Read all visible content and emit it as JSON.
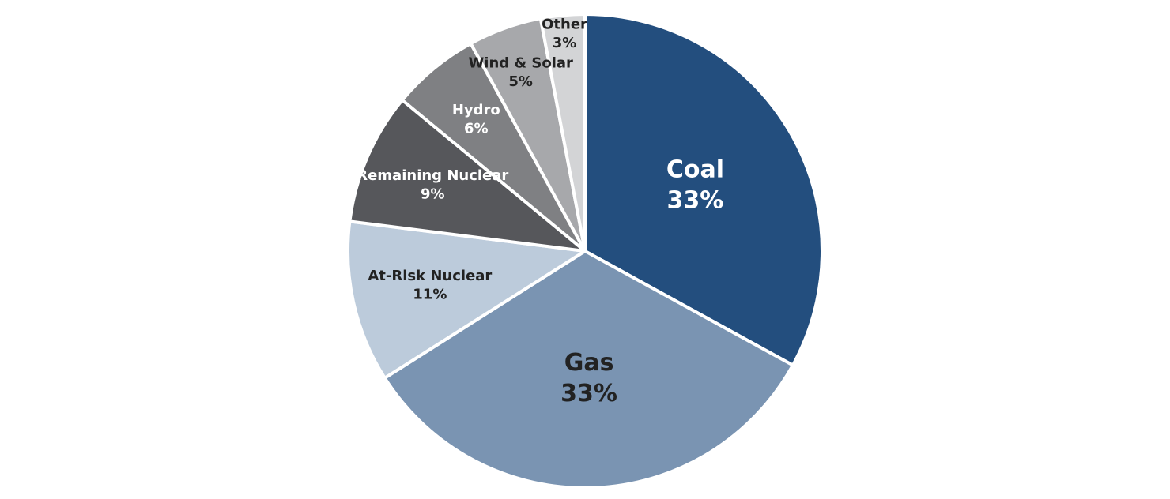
{
  "chart_data": {
    "type": "pie",
    "categories": [
      "Coal",
      "Gas",
      "At-Risk Nuclear",
      "Remaining Nuclear",
      "Hydro",
      "Wind & Solar",
      "Other"
    ],
    "values": [
      33,
      33,
      11,
      9,
      6,
      5,
      3
    ],
    "value_labels": [
      "33%",
      "33%",
      "11%",
      "9%",
      "6%",
      "5%",
      "3%"
    ],
    "colors": [
      "#234e7e",
      "#7a94b2",
      "#bccbdb",
      "#56575b",
      "#7f8083",
      "#a7a8ab",
      "#d3d4d6"
    ]
  }
}
